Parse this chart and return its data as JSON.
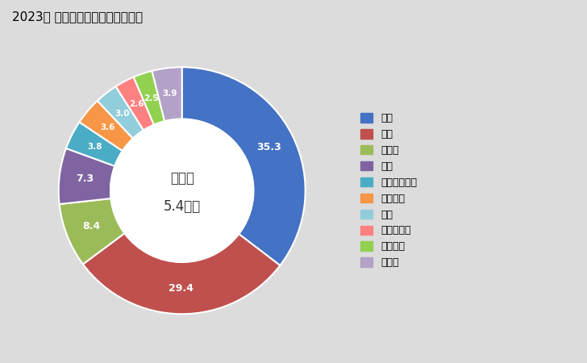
{
  "title": "2023年 輸出相手国のシェア（％）",
  "center_label_line1": "総　額",
  "center_label_line2": "5.4億円",
  "labels": [
    "米国",
    "台湾",
    "トルコ",
    "韓国",
    "シンガポール",
    "ベトナム",
    "豪州",
    "ポルトガル",
    "オランダ",
    "その他"
  ],
  "values": [
    35.3,
    29.4,
    8.4,
    7.3,
    3.8,
    3.6,
    3.0,
    2.6,
    2.5,
    3.9
  ],
  "colors": [
    "#4472C4",
    "#C0504D",
    "#9BBB59",
    "#8064A2",
    "#4BACC6",
    "#F79646",
    "#92CDDC",
    "#FF8080",
    "#92D050",
    "#B3A2C7"
  ],
  "background_color": "#DCDCDC",
  "figsize": [
    7.28,
    4.5
  ],
  "dpi": 100
}
